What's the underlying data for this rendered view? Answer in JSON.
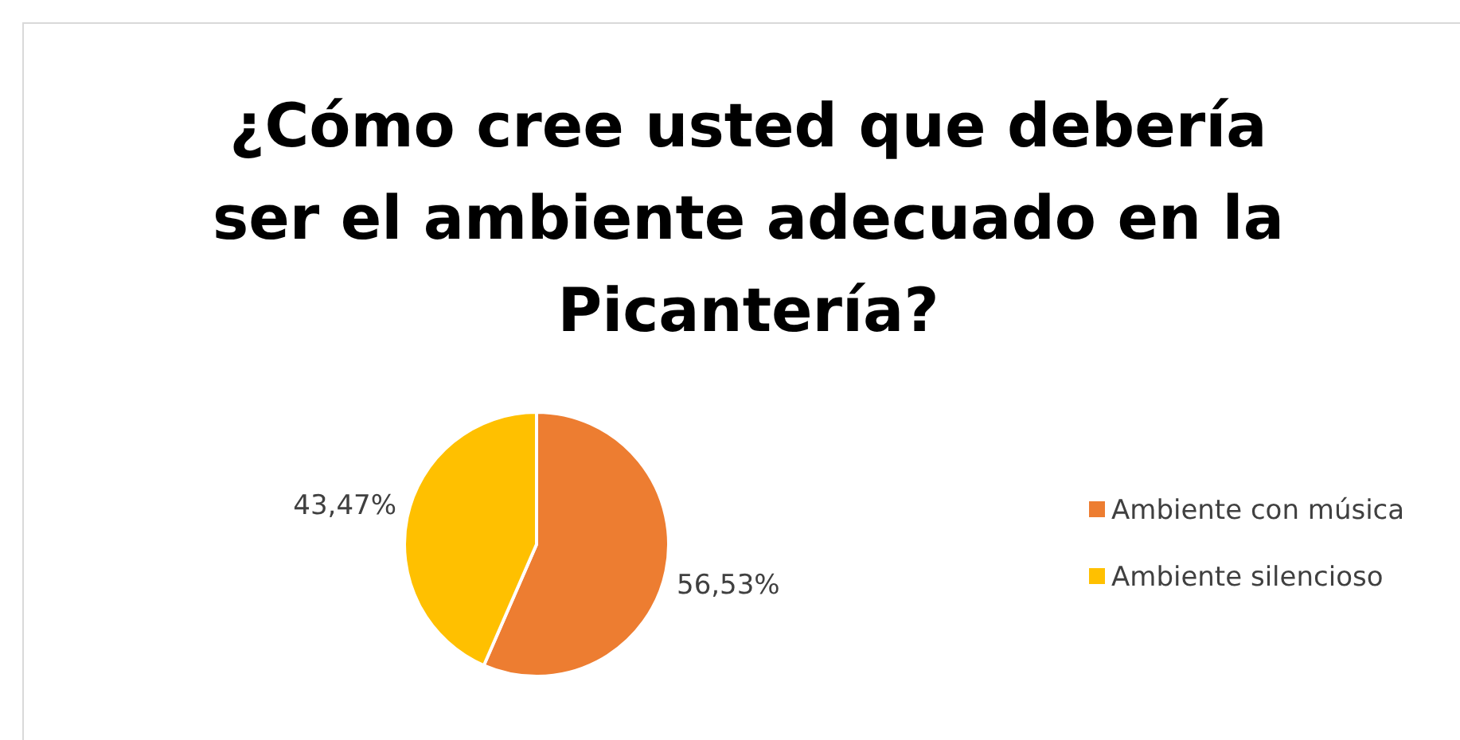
{
  "chart_data": {
    "type": "pie",
    "title": "¿Cómo cree usted que debería ser el ambiente adecuado en la Picantería?",
    "categories": [
      "Ambiente con música",
      "Ambiente silencioso"
    ],
    "values": [
      56.53,
      43.47
    ],
    "colors": [
      "#ed7d31",
      "#ffc000"
    ],
    "value_labels": [
      "56,53%",
      "43,47%"
    ],
    "legend": "right"
  }
}
